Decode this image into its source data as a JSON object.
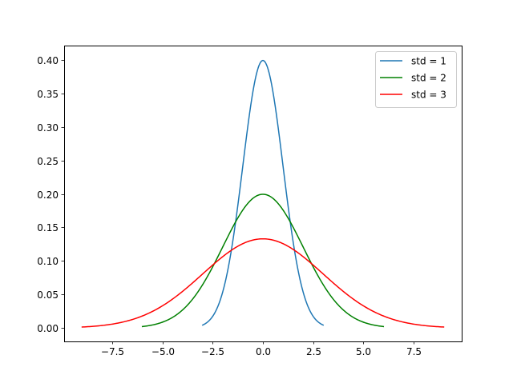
{
  "chart_data": {
    "type": "line",
    "title": "",
    "xlabel": "",
    "ylabel": "",
    "xlim": [
      -9.9,
      9.9
    ],
    "ylim": [
      -0.02,
      0.42
    ],
    "grid": false,
    "legend_position": "upper right",
    "x_ticks": [
      -7.5,
      -5.0,
      -2.5,
      0.0,
      2.5,
      5.0,
      7.5
    ],
    "x_tick_labels": [
      "−7.5",
      "−5.0",
      "−2.5",
      "0.0",
      "2.5",
      "5.0",
      "7.5"
    ],
    "y_ticks": [
      0.0,
      0.05,
      0.1,
      0.15,
      0.2,
      0.25,
      0.3,
      0.35,
      0.4
    ],
    "y_tick_labels": [
      "0.00",
      "0.05",
      "0.10",
      "0.15",
      "0.20",
      "0.25",
      "0.30",
      "0.35",
      "0.40"
    ],
    "series": [
      {
        "name": "std = 1",
        "color": "#1f77b4",
        "distribution": "normal",
        "mean": 0,
        "std": 1,
        "x_range": [
          -3,
          3
        ],
        "peak": 0.399,
        "x": [
          -3,
          -2.5,
          -2,
          -1.5,
          -1,
          -0.5,
          0,
          0.5,
          1,
          1.5,
          2,
          2.5,
          3
        ],
        "values": [
          0.0044,
          0.0175,
          0.054,
          0.1295,
          0.242,
          0.3521,
          0.3989,
          0.3521,
          0.242,
          0.1295,
          0.054,
          0.0175,
          0.0044
        ]
      },
      {
        "name": "std = 2",
        "color": "#008000",
        "distribution": "normal",
        "mean": 0,
        "std": 2,
        "x_range": [
          -6,
          6
        ],
        "peak": 0.1995,
        "x": [
          -6,
          -5,
          -4,
          -3,
          -2,
          -1,
          0,
          1,
          2,
          3,
          4,
          5,
          6
        ],
        "values": [
          0.0022,
          0.0088,
          0.027,
          0.0648,
          0.121,
          0.176,
          0.1995,
          0.176,
          0.121,
          0.0648,
          0.027,
          0.0088,
          0.0022
        ]
      },
      {
        "name": "std = 3",
        "color": "#ff0000",
        "distribution": "normal",
        "mean": 0,
        "std": 3,
        "x_range": [
          -9,
          9
        ],
        "peak": 0.133,
        "x": [
          -9,
          -7.5,
          -6,
          -4.5,
          -3,
          -1.5,
          0,
          1.5,
          3,
          4.5,
          6,
          7.5,
          9
        ],
        "values": [
          0.0015,
          0.0058,
          0.018,
          0.0432,
          0.0807,
          0.1174,
          0.133,
          0.1174,
          0.0807,
          0.0432,
          0.018,
          0.0058,
          0.0015
        ]
      }
    ]
  },
  "legend": {
    "items": [
      {
        "label": "std = 1",
        "color": "#1f77b4"
      },
      {
        "label": "std = 2",
        "color": "#008000"
      },
      {
        "label": "std = 3",
        "color": "#ff0000"
      }
    ]
  }
}
